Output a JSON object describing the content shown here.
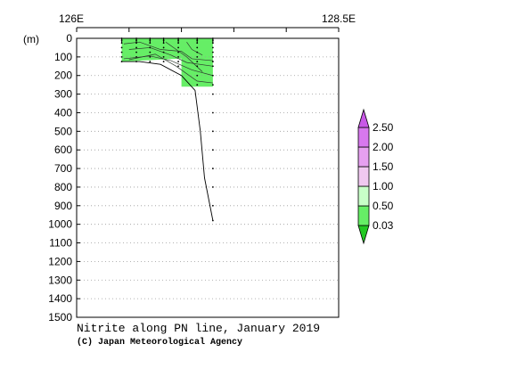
{
  "chart_data": {
    "type": "heatmap",
    "title": "Nitrite along PN line, January 2019",
    "credit": "(C) Japan Meteorological Agency",
    "x_axis": {
      "range": [
        126,
        128.5
      ],
      "tick_labels": [
        {
          "value": 126,
          "label": "126E"
        },
        {
          "value": 128.5,
          "label": "128.5E"
        }
      ],
      "minor_ticks": [
        126.5,
        127,
        127.5,
        128
      ]
    },
    "y_axis": {
      "unit_label": "(m)",
      "range": [
        0,
        1500
      ],
      "inverted": true,
      "ticks": [
        0,
        100,
        200,
        300,
        400,
        500,
        600,
        700,
        800,
        900,
        1000,
        1100,
        1200,
        1300,
        1400,
        1500
      ]
    },
    "grid": true,
    "colorbar": {
      "placement": "right",
      "levels": [
        {
          "min": 0.0,
          "max": 0.03,
          "color": "#22c822",
          "label": ""
        },
        {
          "min": 0.03,
          "max": 0.5,
          "color": "#66ee66",
          "label": "0.03"
        },
        {
          "min": 0.5,
          "max": 1.0,
          "color": "#c8ffc8",
          "label": "0.50"
        },
        {
          "min": 1.0,
          "max": 1.5,
          "color": "#f0c8f0",
          "label": "1.00"
        },
        {
          "min": 1.5,
          "max": 2.0,
          "color": "#e6a0f0",
          "label": "1.50"
        },
        {
          "min": 2.0,
          "max": 2.5,
          "color": "#d878ee",
          "label": "2.00"
        },
        {
          "min": 2.5,
          "max": 3.0,
          "color": "#c858e6",
          "label": "2.50"
        }
      ]
    },
    "stations_lon": [
      126.43,
      126.57,
      126.7,
      126.83,
      126.97,
      127.15,
      127.3
    ],
    "station_sample_depths": [
      [
        0,
        10,
        25,
        50,
        75,
        100,
        125
      ],
      [
        0,
        10,
        25,
        50,
        75,
        100,
        125
      ],
      [
        0,
        10,
        25,
        50,
        75,
        100,
        125
      ],
      [
        0,
        10,
        25,
        50,
        75,
        100,
        125
      ],
      [
        0,
        10,
        25,
        50,
        75,
        100,
        125,
        150
      ],
      [
        0,
        10,
        25,
        50,
        75,
        100,
        125,
        150,
        200,
        250
      ],
      [
        0,
        10,
        25,
        50,
        75,
        100,
        125,
        150,
        200,
        250,
        300,
        400,
        500,
        600,
        700,
        800,
        900,
        980
      ]
    ],
    "bottom_profile": [
      {
        "lon": 126.43,
        "depth": 125
      },
      {
        "lon": 126.6,
        "depth": 125
      },
      {
        "lon": 126.8,
        "depth": 140
      },
      {
        "lon": 127.0,
        "depth": 200
      },
      {
        "lon": 127.13,
        "depth": 280
      },
      {
        "lon": 127.18,
        "depth": 500
      },
      {
        "lon": 127.22,
        "depth": 750
      },
      {
        "lon": 127.3,
        "depth": 980
      }
    ],
    "filled_region": {
      "value_band": "0.03-0.50",
      "polygons": [
        [
          [
            126.43,
            0
          ],
          [
            127.3,
            0
          ],
          [
            127.3,
            100
          ],
          [
            126.43,
            125
          ]
        ],
        [
          [
            127.0,
            100
          ],
          [
            127.3,
            100
          ],
          [
            127.3,
            260
          ],
          [
            127.0,
            260
          ]
        ]
      ]
    },
    "contour_lines": [
      [
        [
          126.45,
          30
        ],
        [
          126.6,
          20
        ],
        [
          126.8,
          60
        ],
        [
          127.0,
          70
        ],
        [
          127.1,
          110
        ],
        [
          127.3,
          120
        ]
      ],
      [
        [
          126.5,
          60
        ],
        [
          126.7,
          50
        ],
        [
          126.9,
          90
        ],
        [
          127.05,
          130
        ],
        [
          127.3,
          150
        ]
      ],
      [
        [
          126.45,
          110
        ],
        [
          126.7,
          95
        ],
        [
          126.9,
          120
        ],
        [
          127.1,
          170
        ],
        [
          127.3,
          200
        ]
      ],
      [
        [
          126.5,
          115
        ],
        [
          126.75,
          85
        ],
        [
          126.95,
          150
        ],
        [
          127.15,
          230
        ],
        [
          127.3,
          240
        ]
      ],
      [
        [
          126.85,
          20
        ],
        [
          126.95,
          60
        ],
        [
          127.05,
          100
        ],
        [
          127.2,
          180
        ]
      ],
      [
        [
          127.05,
          20
        ],
        [
          127.1,
          60
        ],
        [
          127.2,
          90
        ]
      ]
    ]
  }
}
